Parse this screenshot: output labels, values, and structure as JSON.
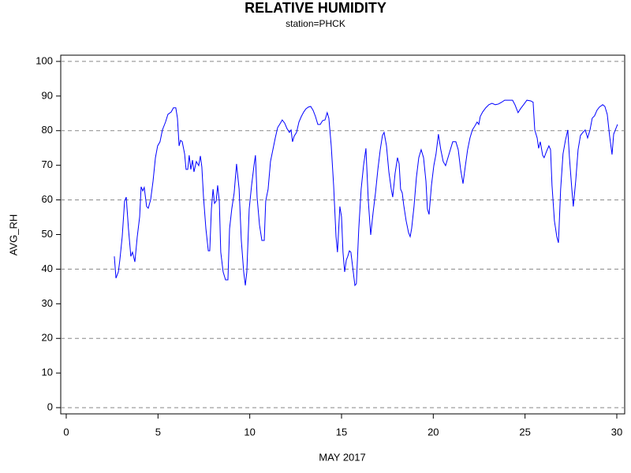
{
  "chart_data": {
    "type": "line",
    "title": "RELATIVE HUMIDITY",
    "subtitle": "station=PHCK",
    "x_label": "MAY 2017",
    "y_label": "AVG_RH",
    "xlim": [
      -0.3,
      30.43
    ],
    "ylim": [
      -1.8,
      101.8
    ],
    "xticks": [
      0,
      5,
      10,
      15,
      20,
      25,
      30
    ],
    "yticks": [
      0,
      10,
      20,
      30,
      40,
      50,
      60,
      70,
      80,
      90,
      100
    ],
    "grid": true,
    "series": [
      {
        "name": "AVG_RH",
        "color": "#0000ff",
        "x": [
          2.62,
          2.71,
          2.84,
          2.92,
          3.05,
          3.18,
          3.27,
          3.39,
          3.52,
          3.61,
          3.74,
          3.87,
          4.0,
          4.08,
          4.17,
          4.25,
          4.38,
          4.47,
          4.6,
          4.73,
          4.86,
          4.98,
          5.11,
          5.24,
          5.41,
          5.54,
          5.72,
          5.84,
          5.97,
          6.06,
          6.15,
          6.23,
          6.32,
          6.45,
          6.53,
          6.62,
          6.7,
          6.79,
          6.88,
          6.96,
          7.09,
          7.22,
          7.31,
          7.39,
          7.48,
          7.61,
          7.74,
          7.82,
          7.91,
          8.0,
          8.08,
          8.17,
          8.25,
          8.34,
          8.42,
          8.55,
          8.68,
          8.81,
          8.9,
          9.02,
          9.15,
          9.28,
          9.42,
          9.54,
          9.67,
          9.76,
          9.84,
          9.97,
          10.1,
          10.23,
          10.31,
          10.4,
          10.53,
          10.66,
          10.79,
          10.87,
          11.0,
          11.13,
          11.26,
          11.39,
          11.52,
          11.65,
          11.77,
          11.9,
          12.03,
          12.16,
          12.25,
          12.33,
          12.42,
          12.55,
          12.68,
          12.81,
          12.94,
          13.06,
          13.19,
          13.32,
          13.45,
          13.58,
          13.71,
          13.84,
          13.97,
          14.1,
          14.22,
          14.31,
          14.44,
          14.57,
          14.7,
          14.78,
          14.91,
          15.0,
          15.08,
          15.17,
          15.26,
          15.34,
          15.43,
          15.51,
          15.64,
          15.73,
          15.81,
          15.94,
          16.07,
          16.2,
          16.33,
          16.46,
          16.59,
          16.72,
          16.85,
          16.98,
          17.11,
          17.23,
          17.32,
          17.45,
          17.58,
          17.71,
          17.79,
          17.92,
          18.05,
          18.14,
          18.22,
          18.31,
          18.39,
          18.52,
          18.65,
          18.74,
          18.82,
          18.95,
          19.08,
          19.21,
          19.34,
          19.47,
          19.6,
          19.68,
          19.77,
          19.9,
          20.03,
          20.15,
          20.28,
          20.41,
          20.54,
          20.67,
          20.8,
          20.93,
          21.06,
          21.23,
          21.36,
          21.49,
          21.62,
          21.75,
          21.87,
          22.0,
          22.13,
          22.26,
          22.39,
          22.48,
          22.56,
          22.69,
          22.86,
          23.03,
          23.2,
          23.38,
          23.55,
          23.72,
          23.89,
          24.11,
          24.32,
          24.45,
          24.62,
          24.75,
          24.92,
          25.1,
          25.31,
          25.44,
          25.53,
          25.66,
          25.74,
          25.83,
          25.96,
          26.04,
          26.17,
          26.3,
          26.39,
          26.47,
          26.6,
          26.73,
          26.82,
          26.94,
          27.07,
          27.2,
          27.33,
          27.42,
          27.55,
          27.63,
          27.76,
          27.89,
          28.02,
          28.15,
          28.28,
          28.41,
          28.54,
          28.66,
          28.79,
          28.92,
          29.05,
          29.23,
          29.35,
          29.48,
          29.61,
          29.74,
          29.83,
          29.95,
          30.04
        ],
        "values": [
          43.7,
          37.4,
          39.2,
          42.6,
          49.4,
          59.7,
          60.8,
          51.7,
          43.7,
          44.9,
          42.1,
          49.4,
          55.1,
          63.8,
          62.6,
          63.6,
          58.1,
          57.6,
          60.1,
          65.4,
          72.2,
          75.6,
          76.8,
          80.2,
          82.5,
          84.7,
          85.4,
          86.6,
          86.6,
          83.6,
          75.6,
          77.2,
          76.8,
          73.3,
          68.8,
          68.8,
          72.9,
          68.8,
          71.5,
          68.1,
          71.1,
          69.9,
          72.7,
          69.5,
          60.8,
          51.7,
          45.3,
          45.3,
          57.4,
          63.1,
          59.0,
          59.7,
          64.2,
          59.7,
          44.9,
          39.2,
          36.9,
          36.9,
          51.7,
          57.4,
          62.0,
          70.4,
          63.1,
          48.3,
          39.2,
          35.3,
          39.2,
          57.4,
          64.2,
          69.9,
          72.9,
          60.8,
          52.8,
          48.3,
          48.3,
          59.7,
          63.1,
          71.1,
          74.5,
          77.9,
          80.9,
          82.0,
          83.1,
          82.2,
          80.6,
          79.5,
          80.2,
          76.8,
          78.4,
          79.5,
          82.5,
          84.1,
          85.4,
          86.3,
          86.8,
          87.0,
          85.9,
          84.1,
          81.8,
          81.8,
          82.9,
          83.1,
          85.2,
          83.6,
          75.6,
          64.2,
          49.4,
          44.9,
          58.1,
          55.1,
          44.9,
          39.2,
          42.6,
          43.7,
          45.3,
          44.9,
          39.2,
          35.3,
          35.8,
          51.7,
          63.1,
          69.9,
          74.9,
          59.7,
          49.9,
          56.3,
          62.0,
          68.8,
          74.5,
          78.6,
          79.5,
          75.6,
          68.1,
          63.1,
          60.8,
          67.7,
          72.2,
          70.4,
          63.1,
          62.0,
          58.5,
          54.0,
          50.6,
          49.4,
          51.7,
          58.1,
          66.5,
          72.2,
          74.5,
          72.2,
          65.4,
          57.4,
          55.8,
          64.2,
          69.9,
          73.3,
          79.0,
          74.5,
          71.1,
          69.9,
          72.2,
          74.5,
          76.8,
          76.8,
          74.5,
          68.8,
          64.7,
          69.9,
          74.5,
          77.9,
          80.2,
          81.3,
          82.5,
          81.8,
          84.1,
          85.4,
          86.6,
          87.5,
          87.9,
          87.5,
          87.7,
          88.2,
          88.8,
          88.8,
          88.8,
          87.5,
          85.2,
          86.3,
          87.5,
          88.8,
          88.6,
          88.2,
          80.2,
          77.9,
          74.9,
          76.8,
          72.9,
          72.2,
          74.0,
          75.6,
          74.5,
          64.2,
          54.0,
          49.4,
          47.6,
          63.1,
          73.3,
          77.2,
          80.2,
          72.2,
          63.1,
          58.1,
          65.4,
          74.5,
          78.6,
          79.5,
          80.2,
          77.9,
          80.2,
          83.6,
          84.3,
          85.9,
          86.8,
          87.5,
          87.0,
          84.7,
          78.4,
          73.1,
          79.0,
          80.6,
          81.8
        ]
      }
    ]
  }
}
